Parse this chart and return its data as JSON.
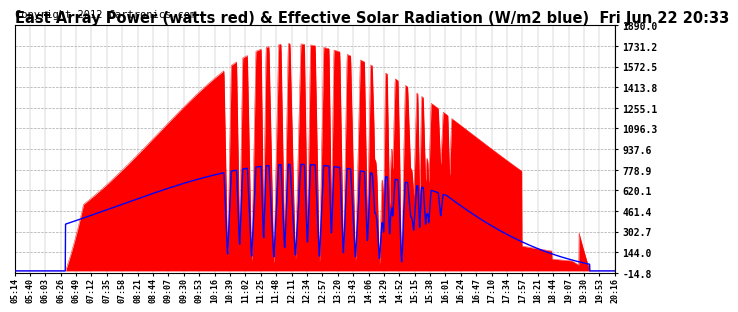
{
  "title": "East Array Power (watts red) & Effective Solar Radiation (W/m2 blue)  Fri Jun 22 20:33",
  "copyright": "Copyright 2012 Cartronics.com",
  "y_ticks": [
    -14.8,
    144.0,
    302.7,
    461.4,
    620.1,
    778.9,
    937.6,
    1096.3,
    1255.1,
    1413.8,
    1572.5,
    1731.2,
    1890.0
  ],
  "y_min": -14.8,
  "y_max": 1890.0,
  "x_labels": [
    "05:14",
    "05:40",
    "06:03",
    "06:26",
    "06:49",
    "07:12",
    "07:35",
    "07:58",
    "08:21",
    "08:44",
    "09:07",
    "09:30",
    "09:53",
    "10:16",
    "10:39",
    "11:02",
    "11:25",
    "11:48",
    "12:11",
    "12:34",
    "12:57",
    "13:20",
    "13:43",
    "14:06",
    "14:29",
    "14:52",
    "15:15",
    "15:38",
    "16:01",
    "16:24",
    "16:47",
    "17:10",
    "17:34",
    "17:57",
    "18:21",
    "18:44",
    "19:07",
    "19:30",
    "19:53",
    "20:16"
  ],
  "background_color": "#ffffff",
  "plot_bg_color": "#ffffff",
  "grid_color": "#aaaaaa",
  "red_color": "#ff0000",
  "blue_color": "#0000ff",
  "title_fontsize": 10.5,
  "copyright_fontsize": 7.5
}
